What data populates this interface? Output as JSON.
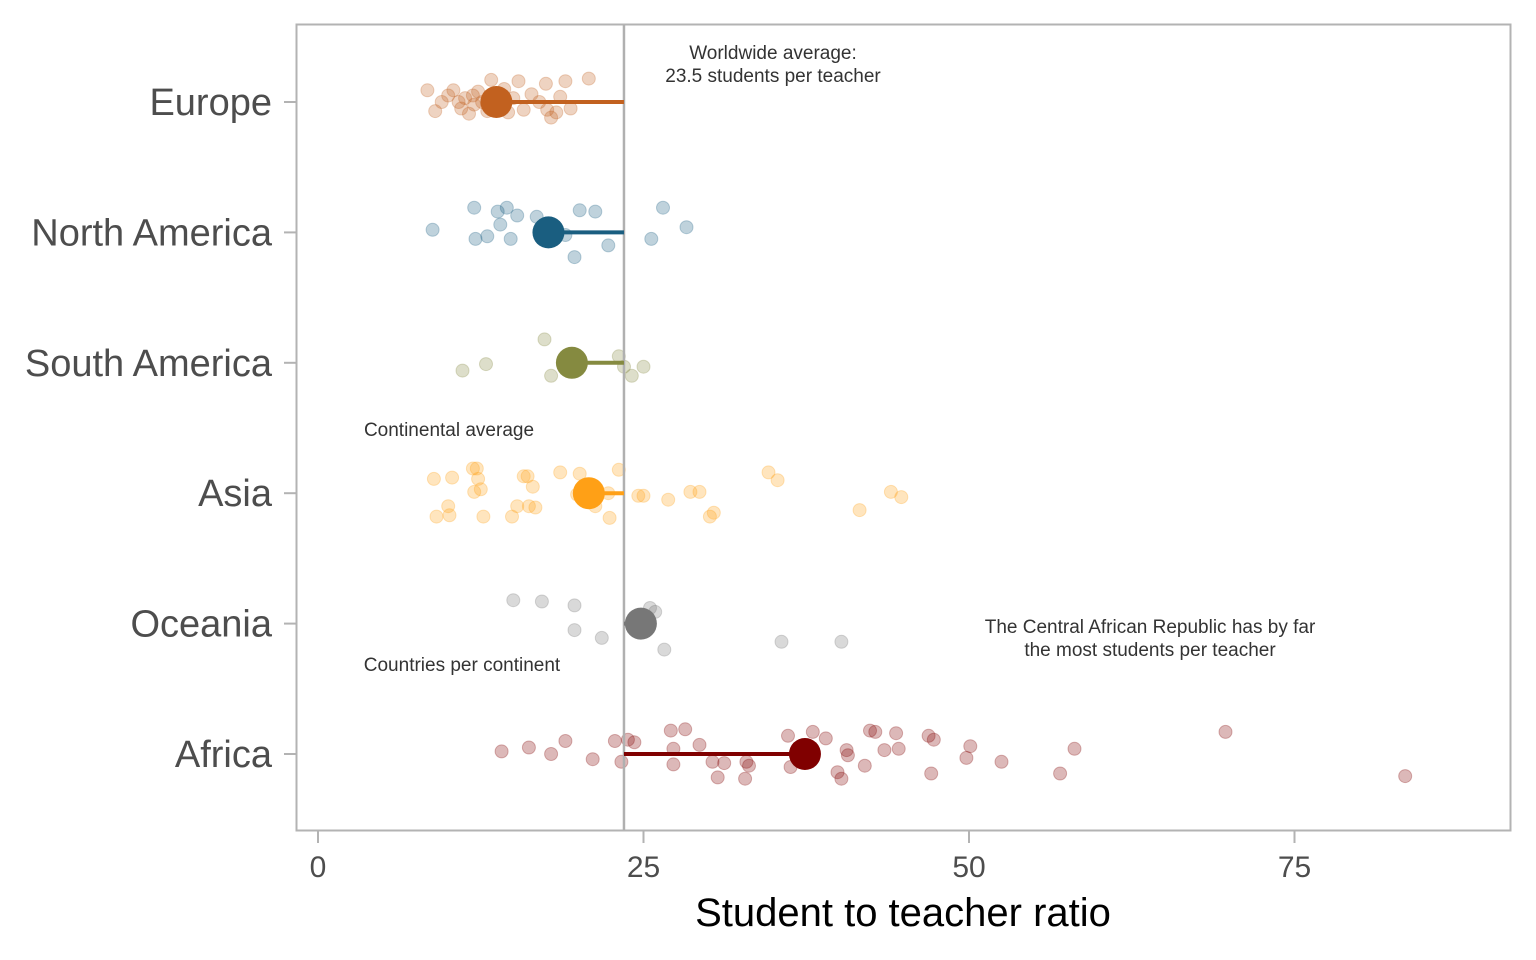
{
  "chart_data": {
    "type": "scatter",
    "xlabel": "Student to teacher ratio",
    "xlim": [
      -1.5,
      92
    ],
    "xticks": [
      0,
      25,
      50,
      75
    ],
    "xtick_labels": [
      "0",
      "25",
      "50",
      "75"
    ],
    "worldwide_average": 23.5,
    "grid": false,
    "categories": [
      "Europe",
      "North America",
      "South America",
      "Asia",
      "Oceania",
      "Africa"
    ],
    "annotations": [
      {
        "lines": [
          "Worldwide average:",
          "23.5 students per teacher"
        ]
      },
      {
        "lines": [
          "Continental average"
        ]
      },
      {
        "lines": [
          "Countries per continent"
        ]
      },
      {
        "lines": [
          "The Central African Republic has by far",
          "the most students per teacher"
        ]
      }
    ],
    "series": [
      {
        "category": "Europe",
        "color": "#C2611F",
        "average": 13.7,
        "points": [
          [
            8.4,
            0.09
          ],
          [
            9.0,
            -0.07
          ],
          [
            9.5,
            0.0
          ],
          [
            10.0,
            0.05
          ],
          [
            10.4,
            0.09
          ],
          [
            10.8,
            0.0
          ],
          [
            11.0,
            -0.05
          ],
          [
            11.3,
            0.03
          ],
          [
            11.6,
            -0.09
          ],
          [
            11.9,
            0.05
          ],
          [
            12.0,
            -0.02
          ],
          [
            12.3,
            0.08
          ],
          [
            12.6,
            0.0
          ],
          [
            13.0,
            -0.07
          ],
          [
            13.3,
            0.17
          ],
          [
            13.6,
            0.05
          ],
          [
            14.0,
            -0.04
          ],
          [
            14.3,
            0.1
          ],
          [
            14.6,
            -0.08
          ],
          [
            15.0,
            0.03
          ],
          [
            15.4,
            0.16
          ],
          [
            15.8,
            -0.06
          ],
          [
            16.4,
            0.06
          ],
          [
            17.0,
            0.0
          ],
          [
            17.5,
            0.14
          ],
          [
            17.6,
            -0.06
          ],
          [
            17.9,
            -0.12
          ],
          [
            18.3,
            -0.08
          ],
          [
            18.6,
            0.04
          ],
          [
            19.0,
            0.16
          ],
          [
            19.4,
            -0.05
          ],
          [
            20.8,
            0.18
          ]
        ]
      },
      {
        "category": "North America",
        "color": "#1A5E80",
        "average": 17.7,
        "points": [
          [
            8.8,
            0.02
          ],
          [
            12.0,
            0.19
          ],
          [
            12.1,
            -0.05
          ],
          [
            13.0,
            -0.03
          ],
          [
            13.8,
            0.16
          ],
          [
            14.0,
            0.06
          ],
          [
            14.5,
            0.19
          ],
          [
            14.8,
            -0.05
          ],
          [
            15.3,
            0.13
          ],
          [
            16.8,
            0.12
          ],
          [
            19.0,
            -0.02
          ],
          [
            19.7,
            -0.19
          ],
          [
            20.1,
            0.17
          ],
          [
            21.3,
            0.16
          ],
          [
            22.3,
            -0.1
          ],
          [
            25.6,
            -0.05
          ],
          [
            26.5,
            0.19
          ],
          [
            28.3,
            0.04
          ]
        ]
      },
      {
        "category": "South America",
        "color": "#858A40",
        "average": 19.5,
        "points": [
          [
            11.1,
            -0.06
          ],
          [
            12.9,
            -0.01
          ],
          [
            17.4,
            0.18
          ],
          [
            17.9,
            -0.1
          ],
          [
            23.1,
            0.05
          ],
          [
            23.5,
            -0.03
          ],
          [
            24.1,
            -0.1
          ],
          [
            25.0,
            -0.03
          ]
        ]
      },
      {
        "category": "Asia",
        "color": "#FFA016",
        "average": 20.8,
        "points": [
          [
            8.9,
            0.11
          ],
          [
            9.1,
            -0.18
          ],
          [
            10.0,
            -0.1
          ],
          [
            10.3,
            0.12
          ],
          [
            10.1,
            -0.17
          ],
          [
            11.9,
            0.19
          ],
          [
            12.0,
            0.01
          ],
          [
            12.2,
            0.19
          ],
          [
            12.3,
            0.11
          ],
          [
            12.5,
            0.03
          ],
          [
            12.7,
            -0.18
          ],
          [
            14.9,
            -0.18
          ],
          [
            15.3,
            -0.1
          ],
          [
            15.8,
            0.13
          ],
          [
            16.1,
            0.13
          ],
          [
            16.2,
            -0.1
          ],
          [
            16.5,
            0.05
          ],
          [
            16.7,
            -0.11
          ],
          [
            18.6,
            0.16
          ],
          [
            19.9,
            -0.01
          ],
          [
            20.1,
            0.15
          ],
          [
            20.3,
            -0.04
          ],
          [
            21.3,
            -0.1
          ],
          [
            22.3,
            0.0
          ],
          [
            22.4,
            -0.19
          ],
          [
            23.1,
            0.18
          ],
          [
            24.6,
            -0.02
          ],
          [
            25.0,
            -0.02
          ],
          [
            26.9,
            -0.05
          ],
          [
            28.6,
            0.01
          ],
          [
            29.3,
            0.01
          ],
          [
            30.1,
            -0.18
          ],
          [
            30.4,
            -0.15
          ],
          [
            34.6,
            0.16
          ],
          [
            35.3,
            0.1
          ],
          [
            41.6,
            -0.13
          ],
          [
            44.0,
            0.01
          ],
          [
            44.8,
            -0.03
          ]
        ]
      },
      {
        "category": "Oceania",
        "color": "#777777",
        "average": 24.8,
        "points": [
          [
            15.0,
            0.18
          ],
          [
            17.2,
            0.17
          ],
          [
            19.7,
            0.14
          ],
          [
            19.7,
            -0.05
          ],
          [
            21.8,
            -0.11
          ],
          [
            25.5,
            0.12
          ],
          [
            25.9,
            0.09
          ],
          [
            26.6,
            -0.2
          ],
          [
            35.6,
            -0.14
          ],
          [
            40.2,
            -0.14
          ]
        ]
      },
      {
        "category": "Africa",
        "color": "#800000",
        "average": 37.4,
        "points": [
          [
            14.1,
            0.02
          ],
          [
            16.2,
            0.05
          ],
          [
            17.9,
            0.0
          ],
          [
            19.0,
            0.1
          ],
          [
            21.1,
            -0.04
          ],
          [
            22.8,
            0.1
          ],
          [
            23.3,
            -0.06
          ],
          [
            23.8,
            0.11
          ],
          [
            24.3,
            0.09
          ],
          [
            27.1,
            0.18
          ],
          [
            27.3,
            0.04
          ],
          [
            27.3,
            -0.08
          ],
          [
            28.2,
            0.19
          ],
          [
            29.3,
            0.07
          ],
          [
            30.3,
            -0.06
          ],
          [
            30.7,
            -0.18
          ],
          [
            31.2,
            -0.07
          ],
          [
            32.9,
            -0.06
          ],
          [
            32.8,
            -0.19
          ],
          [
            33.1,
            -0.09
          ],
          [
            36.1,
            0.14
          ],
          [
            36.3,
            -0.1
          ],
          [
            38.0,
            0.17
          ],
          [
            39.0,
            0.12
          ],
          [
            39.9,
            -0.14
          ],
          [
            40.2,
            -0.19
          ],
          [
            40.6,
            0.03
          ],
          [
            40.7,
            -0.01
          ],
          [
            42.0,
            -0.09
          ],
          [
            42.4,
            0.18
          ],
          [
            42.8,
            0.17
          ],
          [
            43.5,
            0.03
          ],
          [
            44.4,
            0.16
          ],
          [
            44.6,
            0.04
          ],
          [
            46.9,
            0.14
          ],
          [
            47.1,
            -0.15
          ],
          [
            47.3,
            0.11
          ],
          [
            49.8,
            -0.03
          ],
          [
            50.1,
            0.06
          ],
          [
            52.5,
            -0.06
          ],
          [
            57.0,
            -0.15
          ],
          [
            58.1,
            0.04
          ],
          [
            69.7,
            0.17
          ],
          [
            83.5,
            -0.17
          ]
        ]
      }
    ]
  }
}
